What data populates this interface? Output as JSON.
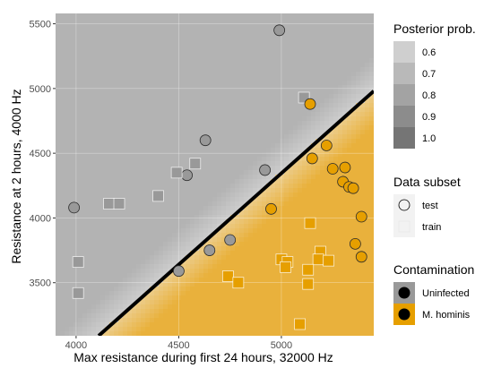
{
  "chart_data": {
    "type": "scatter",
    "xlabel": "Max resistance during first 24 hours, 32000 Hz",
    "ylabel": "Resistance at 2 hours, 4000 Hz",
    "xlim": [
      3900,
      5450
    ],
    "ylim": [
      3090,
      5580
    ],
    "xticks": [
      4000,
      4500,
      5000
    ],
    "yticks": [
      3500,
      4000,
      4500,
      5000,
      5500
    ],
    "grid": true,
    "background": "posterior probability heatmap (grey = Uninfected side, orange = M. hominis side)",
    "decision_boundary": {
      "from": [
        4110,
        3090
      ],
      "to": [
        5450,
        4980
      ]
    },
    "colors": {
      "uninfected": "#999999",
      "m_hominis": "#E69F00",
      "background_grey": "#b3b3b3",
      "background_orange": "#e9b13c",
      "boundary": "#000000"
    },
    "legend": {
      "posterior": {
        "title": "Posterior prob.",
        "levels": [
          "0.6",
          "0.7",
          "0.8",
          "0.9",
          "1.0"
        ],
        "colors": [
          "#cfcfcf",
          "#b9b9b9",
          "#a3a3a3",
          "#8c8c8c",
          "#757575"
        ]
      },
      "subset": {
        "title": "Data subset",
        "items": [
          "test",
          "train"
        ]
      },
      "contamination": {
        "title": "Contamination",
        "items": [
          "Uninfected",
          "M. hominis"
        ]
      }
    },
    "series": [
      {
        "name": "Uninfected",
        "subset": "test",
        "points": [
          [
            3990,
            4080
          ],
          [
            4540,
            4330
          ],
          [
            4630,
            4600
          ],
          [
            4650,
            3750
          ],
          [
            4750,
            3830
          ],
          [
            4500,
            3590
          ],
          [
            4920,
            4370
          ],
          [
            4990,
            5450
          ]
        ]
      },
      {
        "name": "Uninfected",
        "subset": "train",
        "points": [
          [
            4010,
            3660
          ],
          [
            4010,
            3420
          ],
          [
            4160,
            4110
          ],
          [
            4210,
            4110
          ],
          [
            4400,
            4170
          ],
          [
            4490,
            4350
          ],
          [
            4580,
            4420
          ],
          [
            5110,
            4930
          ]
        ]
      },
      {
        "name": "M. hominis",
        "subset": "test",
        "points": [
          [
            5140,
            4880
          ],
          [
            5220,
            4560
          ],
          [
            5150,
            4460
          ],
          [
            5250,
            4380
          ],
          [
            5310,
            4390
          ],
          [
            5300,
            4280
          ],
          [
            5330,
            4240
          ],
          [
            5350,
            4230
          ],
          [
            5390,
            4010
          ],
          [
            4950,
            4070
          ],
          [
            5360,
            3800
          ],
          [
            5390,
            3700
          ]
        ]
      },
      {
        "name": "M. hominis",
        "subset": "train",
        "points": [
          [
            4740,
            3550
          ],
          [
            4790,
            3500
          ],
          [
            5000,
            3680
          ],
          [
            5030,
            3660
          ],
          [
            5020,
            3620
          ],
          [
            5140,
            3960
          ],
          [
            5190,
            3740
          ],
          [
            5180,
            3680
          ],
          [
            5230,
            3670
          ],
          [
            5130,
            3600
          ],
          [
            5130,
            3490
          ],
          [
            5090,
            3180
          ]
        ]
      }
    ]
  }
}
